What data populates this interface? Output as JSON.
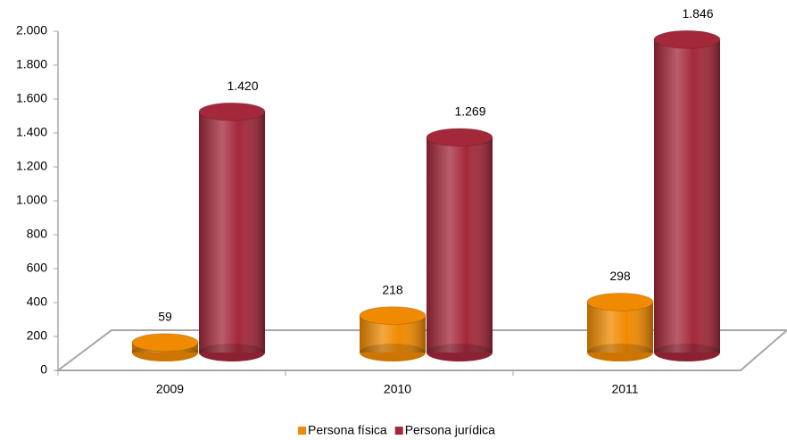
{
  "chart_data": {
    "type": "bar",
    "categories": [
      "2009",
      "2010",
      "2011"
    ],
    "series": [
      {
        "name": "Persona física",
        "color": "#f08a00",
        "values": [
          59,
          218,
          298
        ]
      },
      {
        "name": "Persona jurídica",
        "color": "#a3283a",
        "values": [
          1420,
          1269,
          1846
        ],
        "value_labels": [
          "1.420",
          "1.269",
          "1.846"
        ]
      }
    ],
    "ylim": [
      0,
      2000
    ],
    "yticks": [
      0,
      200,
      400,
      600,
      800,
      {
        "value": 1000,
        "label": "1.000"
      },
      {
        "value": 1200,
        "label": "1.200"
      },
      {
        "value": 1400,
        "label": "1.400"
      },
      {
        "value": 1600,
        "label": "1.600"
      },
      {
        "value": 1800,
        "label": "1.800"
      },
      {
        "value": 2000,
        "label": "2.000"
      }
    ],
    "legend": "bottom"
  }
}
